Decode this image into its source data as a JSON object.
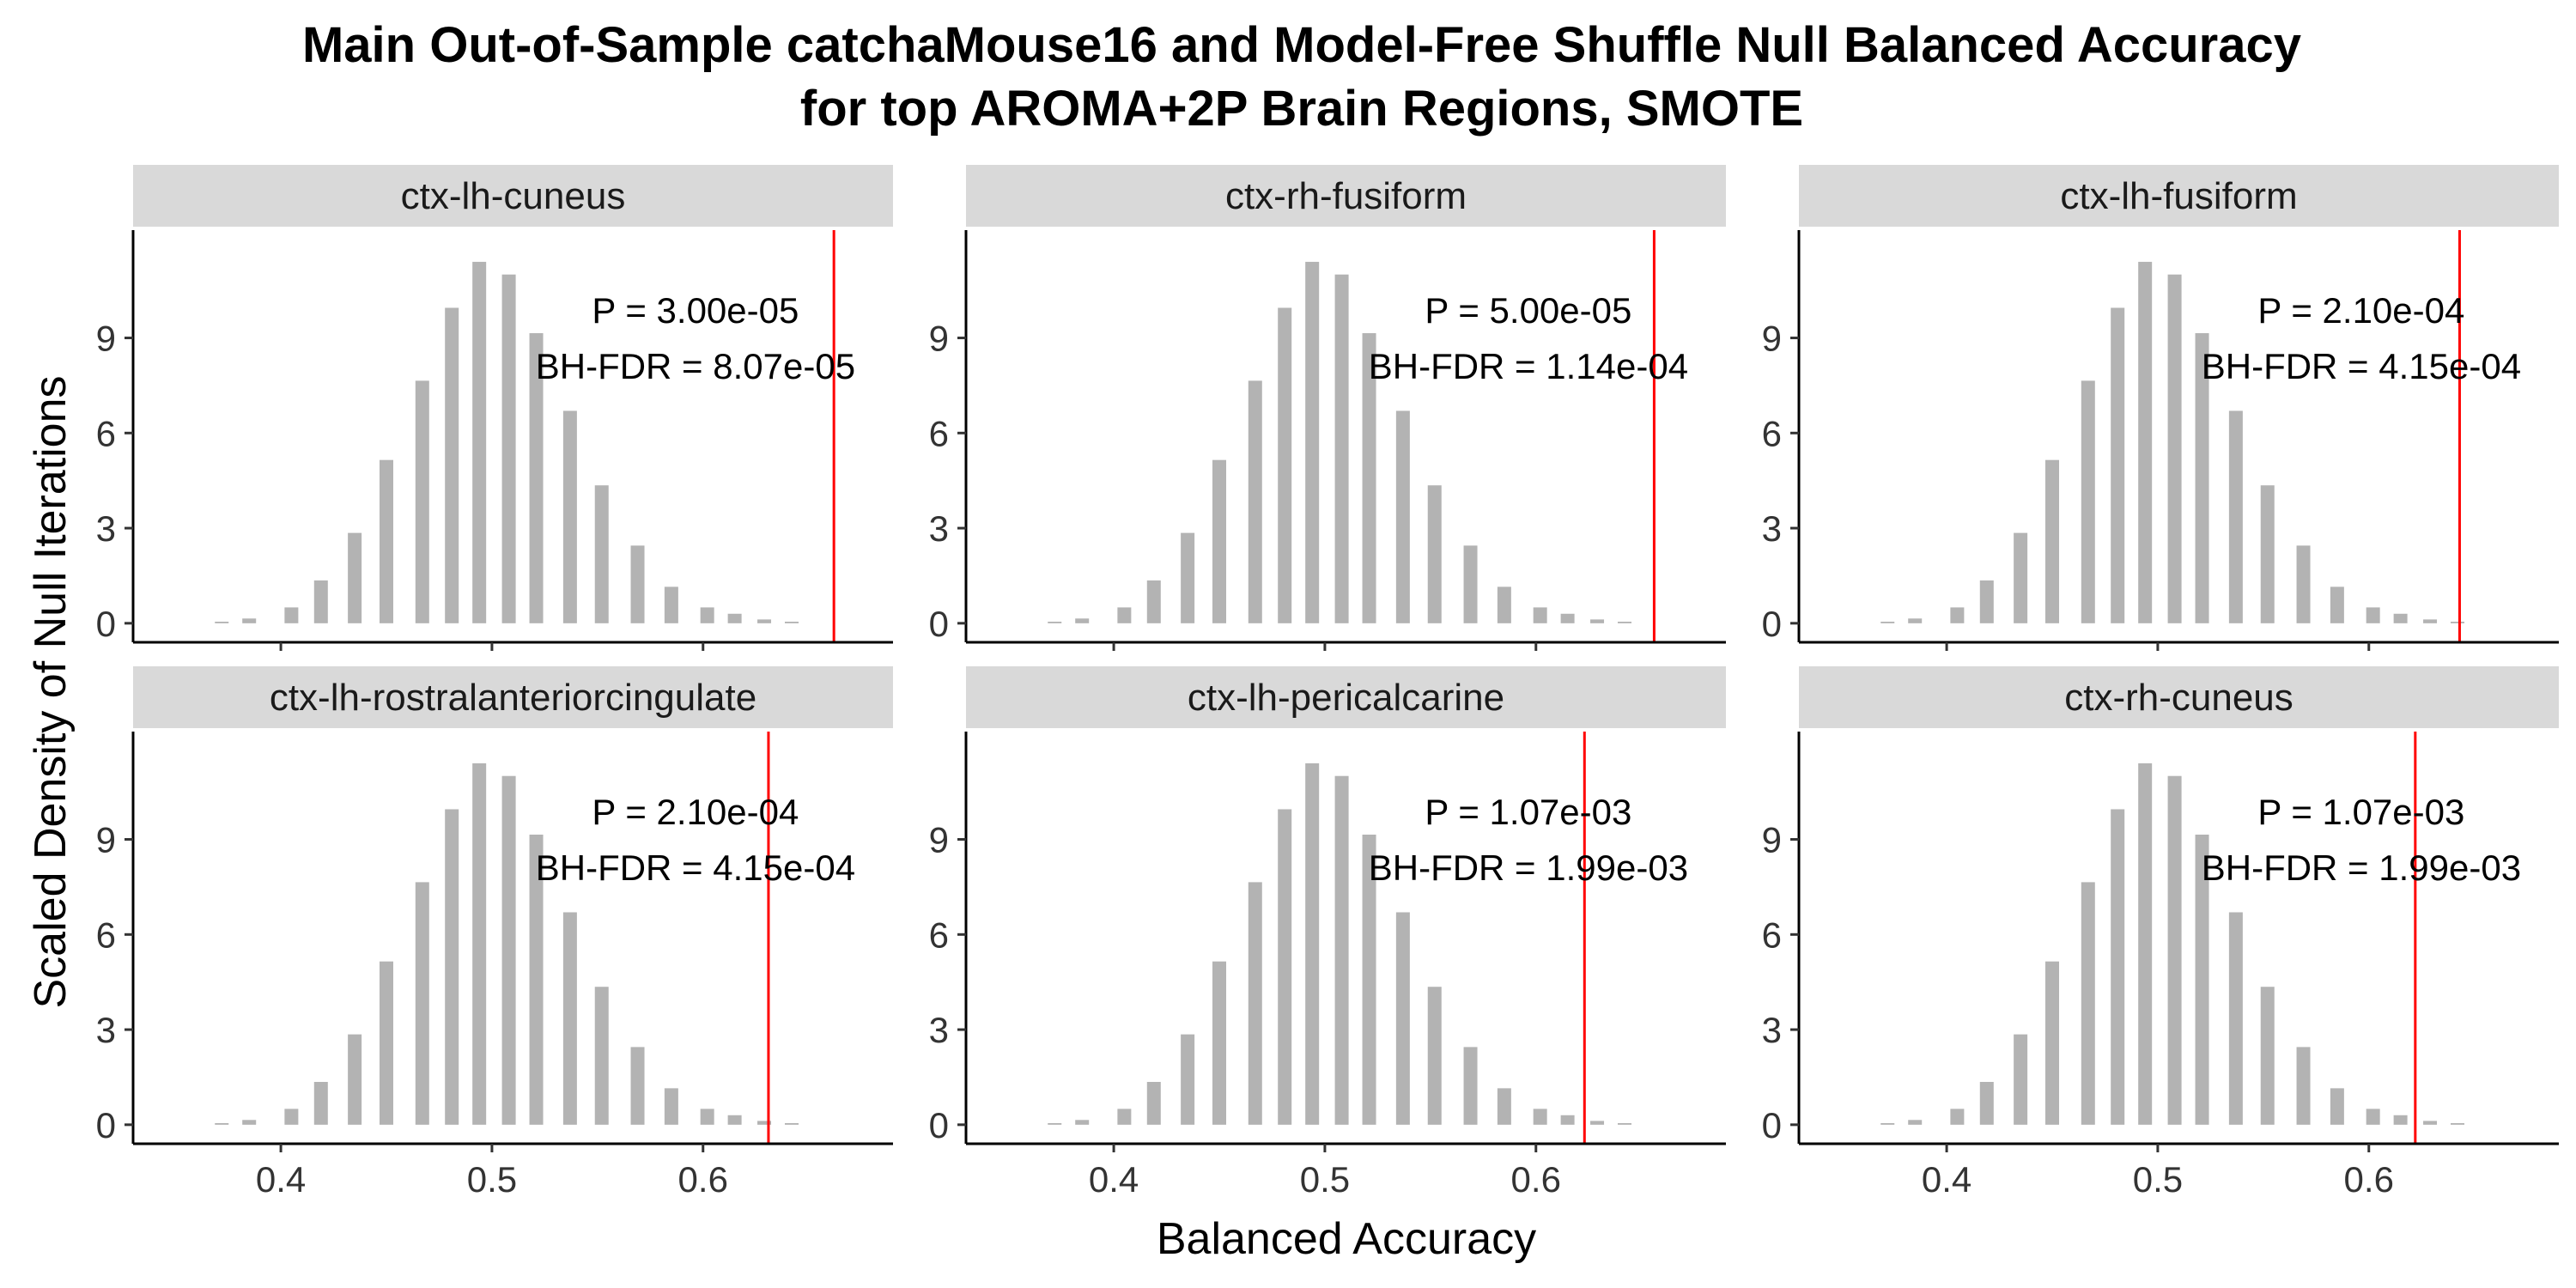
{
  "chart_data": {
    "type": "bar",
    "title": "Main Out-of-Sample catchaMouse16 and Model-Free Shuffle Null Balanced Accuracy",
    "subtitle": "for top AROMA+2P Brain Regions, SMOTE",
    "xlabel": "Balanced Accuracy",
    "ylabel": "Scaled Density of Null Iterations",
    "xlim": [
      0.33,
      0.69
    ],
    "ylim": [
      -0.6,
      12.4
    ],
    "x_ticks": [
      0.4,
      0.5,
      0.6
    ],
    "x_tick_labels": [
      "0.4",
      "0.5",
      "0.6"
    ],
    "y_ticks": [
      0,
      3,
      6,
      9
    ],
    "y_tick_labels": [
      "0",
      "3",
      "6",
      "9"
    ],
    "null_distribution": {
      "x": [
        0.372,
        0.385,
        0.405,
        0.419,
        0.435,
        0.45,
        0.467,
        0.481,
        0.494,
        0.508,
        0.521,
        0.537,
        0.552,
        0.569,
        0.585,
        0.602,
        0.615,
        0.629,
        0.642
      ],
      "density": [
        0.05,
        0.15,
        0.5,
        1.35,
        2.85,
        5.15,
        7.65,
        9.95,
        11.4,
        11.0,
        9.15,
        6.7,
        4.35,
        2.45,
        1.15,
        0.5,
        0.3,
        0.12,
        0.05
      ]
    },
    "panels": [
      {
        "region": "ctx-lh-cuneus",
        "observed": 0.662,
        "p_label": "P = 3.00e-05",
        "fdr_label": "BH-FDR = 8.07e-05"
      },
      {
        "region": "ctx-rh-fusiform",
        "observed": 0.656,
        "p_label": "P = 5.00e-05",
        "fdr_label": "BH-FDR = 1.14e-04"
      },
      {
        "region": "ctx-lh-fusiform",
        "observed": 0.643,
        "p_label": "P = 2.10e-04",
        "fdr_label": "BH-FDR = 4.15e-04"
      },
      {
        "region": "ctx-lh-rostralanteriorcingulate",
        "observed": 0.631,
        "p_label": "P = 2.10e-04",
        "fdr_label": "BH-FDR = 4.15e-04"
      },
      {
        "region": "ctx-lh-pericalcarine",
        "observed": 0.623,
        "p_label": "P = 1.07e-03",
        "fdr_label": "BH-FDR = 1.99e-03"
      },
      {
        "region": "ctx-rh-cuneus",
        "observed": 0.622,
        "p_label": "P = 1.07e-03",
        "fdr_label": "BH-FDR = 1.99e-03"
      }
    ],
    "colors": {
      "bars": "#b3b3b3",
      "observed_line": "#ff0000",
      "strip": "#d9d9d9"
    },
    "grid": false,
    "legend": "none"
  }
}
